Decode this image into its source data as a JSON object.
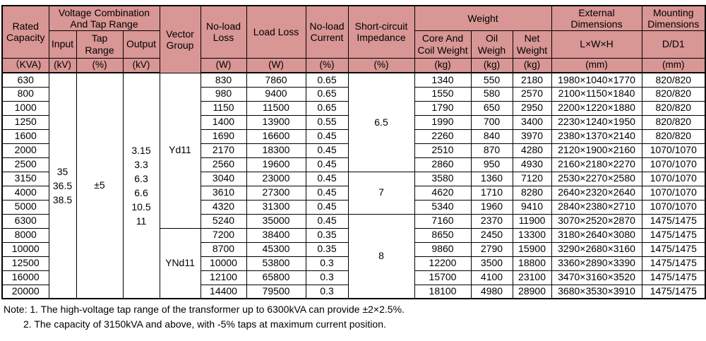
{
  "table": {
    "header": {
      "rated_capacity": "Rated Capacity",
      "voltage_group": "Voltage Combination And Tap Range",
      "input": "Input",
      "tap_range": "Tap Range",
      "output": "Output",
      "vector_group": "Vector Group",
      "no_load_loss": "No-load Loss",
      "load_loss": "Load Loss",
      "no_load_current": "No-load Current",
      "short_circuit_impedance": "Short-circuit Impedance",
      "weight": "Weight",
      "core_and_coil_weight": "Core And Coil Weight",
      "oil_weigh": "Oil Weigh",
      "net_weight": "Net Weight",
      "external_dimensions": "External Dimensions",
      "lwh": "L×W×H",
      "mounting_dimensions": "Mounting Dimensions",
      "dd1": "D/D1"
    },
    "units": {
      "capacity": "（KVA)",
      "input": "(kV)",
      "tap": "(%)",
      "output": "(kV)",
      "no_load_loss": "(W)",
      "load_loss": "(W)",
      "no_load_current": "(%)",
      "impedance": "(%)",
      "core": "(kg)",
      "oil": "(kg)",
      "net": "(kg)",
      "lwh": "(mm)",
      "dd1": "(mm)"
    },
    "merged": {
      "input_values": [
        "35",
        "36.5",
        "38.5"
      ],
      "tap_range_value": "±5",
      "output_values": [
        "3.15",
        "3.3",
        "6.3",
        "6.6",
        "10.5",
        "11"
      ],
      "vector_groups": [
        {
          "label": "Yd11",
          "span": 11
        },
        {
          "label": "YNd11",
          "span": 5
        }
      ],
      "impedance_groups": [
        {
          "value": "6.5",
          "span": 7
        },
        {
          "value": "7",
          "span": 3
        },
        {
          "value": "8",
          "span": 6
        }
      ]
    },
    "rows": [
      {
        "capacity": "630",
        "no_load_loss": "830",
        "load_loss": "7860",
        "no_load_current": "0.65",
        "core": "1340",
        "oil": "550",
        "net": "2180",
        "dimensions": "1980×1040×1770",
        "mounting": "820/820"
      },
      {
        "capacity": "800",
        "no_load_loss": "980",
        "load_loss": "9400",
        "no_load_current": "0.65",
        "core": "1550",
        "oil": "580",
        "net": "2570",
        "dimensions": "2100×1150×1840",
        "mounting": "820/820"
      },
      {
        "capacity": "1000",
        "no_load_loss": "1150",
        "load_loss": "11500",
        "no_load_current": "0.65",
        "core": "1790",
        "oil": "650",
        "net": "2950",
        "dimensions": "2200×1220×1880",
        "mounting": "820/820"
      },
      {
        "capacity": "1250",
        "no_load_loss": "1400",
        "load_loss": "13900",
        "no_load_current": "0.55",
        "core": "1990",
        "oil": "700",
        "net": "3400",
        "dimensions": "2230×1240×1950",
        "mounting": "820/820"
      },
      {
        "capacity": "1600",
        "no_load_loss": "1690",
        "load_loss": "16600",
        "no_load_current": "0.45",
        "core": "2260",
        "oil": "840",
        "net": "3970",
        "dimensions": "2380×1370×2140",
        "mounting": "820/820"
      },
      {
        "capacity": "2000",
        "no_load_loss": "2170",
        "load_loss": "18300",
        "no_load_current": "0.45",
        "core": "2510",
        "oil": "870",
        "net": "4280",
        "dimensions": "2120×1900×2160",
        "mounting": "1070/1070"
      },
      {
        "capacity": "2500",
        "no_load_loss": "2560",
        "load_loss": "19600",
        "no_load_current": "0.45",
        "core": "2860",
        "oil": "950",
        "net": "4930",
        "dimensions": "2160×2180×2270",
        "mounting": "1070/1070"
      },
      {
        "capacity": "3150",
        "no_load_loss": "3040",
        "load_loss": "23000",
        "no_load_current": "0.45",
        "core": "3580",
        "oil": "1360",
        "net": "7120",
        "dimensions": "2530×2270×2580",
        "mounting": "1070/1070"
      },
      {
        "capacity": "4000",
        "no_load_loss": "3610",
        "load_loss": "27300",
        "no_load_current": "0.45",
        "core": "4620",
        "oil": "1710",
        "net": "8280",
        "dimensions": "2640×2320×2640",
        "mounting": "1070/1070"
      },
      {
        "capacity": "5000",
        "no_load_loss": "4320",
        "load_loss": "31300",
        "no_load_current": "0.45",
        "core": "5340",
        "oil": "1960",
        "net": "9410",
        "dimensions": "2840×2380×2710",
        "mounting": "1070/1070"
      },
      {
        "capacity": "6300",
        "no_load_loss": "5240",
        "load_loss": "35000",
        "no_load_current": "0.45",
        "core": "7160",
        "oil": "2370",
        "net": "11900",
        "dimensions": "3070×2520×2870",
        "mounting": "1475/1475"
      },
      {
        "capacity": "8000",
        "no_load_loss": "7200",
        "load_loss": "38400",
        "no_load_current": "0.35",
        "core": "8650",
        "oil": "2450",
        "net": "13300",
        "dimensions": "3180×2640×3080",
        "mounting": "1475/1475"
      },
      {
        "capacity": "10000",
        "no_load_loss": "8700",
        "load_loss": "45300",
        "no_load_current": "0.35",
        "core": "9860",
        "oil": "2790",
        "net": "15900",
        "dimensions": "3290×2680×3160",
        "mounting": "1475/1475"
      },
      {
        "capacity": "12500",
        "no_load_loss": "10000",
        "load_loss": "53800",
        "no_load_current": "0.3",
        "core": "12200",
        "oil": "3500",
        "net": "18800",
        "dimensions": "3360×2890×3390",
        "mounting": "1475/1475"
      },
      {
        "capacity": "16000",
        "no_load_loss": "12100",
        "load_loss": "65800",
        "no_load_current": "0.3",
        "core": "15700",
        "oil": "4100",
        "net": "23100",
        "dimensions": "3470×3160×3520",
        "mounting": "1475/1475"
      },
      {
        "capacity": "20000",
        "no_load_loss": "14400",
        "load_loss": "79500",
        "no_load_current": "0.3",
        "core": "18100",
        "oil": "4980",
        "net": "28900",
        "dimensions": "3680×3530×3910",
        "mounting": "1475/1475"
      }
    ]
  },
  "notes": {
    "line1": "Note: 1. The high-voltage tap range of the transformer up to 6300kVA can provide ±2×2.5%.",
    "line2": "2. The capacity of 3150kVA and above, with -5% taps at maximum current position."
  },
  "colors": {
    "header_bg": "#d89694",
    "border": "#000000",
    "text": "#000000"
  }
}
